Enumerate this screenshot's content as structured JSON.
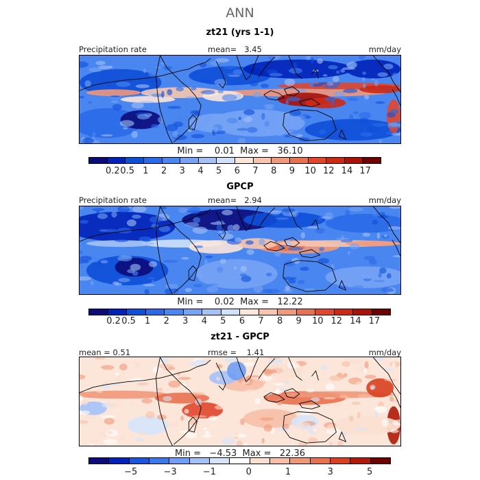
{
  "season": "ANN",
  "panels": [
    {
      "title": "zt21 (yrs 1-1)",
      "left_label": "Precipitation rate",
      "center_label": "mean=   3.45",
      "units": "mm/day",
      "minmax": "Min =    0.01  Max =   36.10",
      "colorbar": [
        "#0b0b7a",
        "#0022b8",
        "#0e4fd8",
        "#2a6ae8",
        "#4a86f0",
        "#76a3f4",
        "#a5c2f7",
        "#d2e1fb",
        "#fce6da",
        "#f7c5ae",
        "#f0987a",
        "#e8714f",
        "#e0472c",
        "#cc2a14",
        "#a81208",
        "#6e0000"
      ],
      "ticks": [
        "0.2",
        "0.5",
        "1",
        "2",
        "3",
        "4",
        "5",
        "6",
        "7",
        "8",
        "9",
        "10",
        "12",
        "14",
        "17"
      ],
      "field": "model"
    },
    {
      "title": "GPCP",
      "left_label": "Precipitation rate",
      "center_label": "mean=   2.94",
      "units": "mm/day",
      "minmax": "Min =    0.02  Max =   12.22",
      "colorbar": [
        "#0b0b7a",
        "#0022b8",
        "#0e4fd8",
        "#2a6ae8",
        "#4a86f0",
        "#76a3f4",
        "#a5c2f7",
        "#d2e1fb",
        "#fce6da",
        "#f7c5ae",
        "#f0987a",
        "#e8714f",
        "#e0472c",
        "#cc2a14",
        "#a81208",
        "#6e0000"
      ],
      "ticks": [
        "0.2",
        "0.5",
        "1",
        "2",
        "3",
        "4",
        "5",
        "6",
        "7",
        "8",
        "9",
        "10",
        "12",
        "14",
        "17"
      ],
      "field": "obs"
    },
    {
      "title": "zt21 - GPCP",
      "left_label": "mean =   0.51",
      "center_label": "rmse =    1.41",
      "units": "mm/day",
      "minmax": "Min =   −4.53  Max =   22.36",
      "colorbar": [
        "#0b0b7a",
        "#0022b8",
        "#1a55dd",
        "#3a78ec",
        "#6f9ef4",
        "#a5c2f7",
        "#d6e4fb",
        "#ffffff",
        "#fbe0d0",
        "#f7bfa6",
        "#f0987a",
        "#e8714f",
        "#d8401f",
        "#b01a08",
        "#6e0000"
      ],
      "ticks": [
        "−5",
        "−3",
        "−1",
        "0",
        "1",
        "3",
        "5"
      ],
      "field": "diff"
    }
  ]
}
